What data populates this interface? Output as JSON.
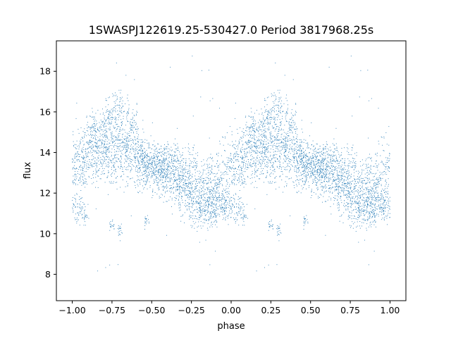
{
  "chart_data": {
    "type": "scatter",
    "title": "1SWASPJ122619.25-530427.0 Period 3817968.25s",
    "xlabel": "phase",
    "ylabel": "flux",
    "xlim": [
      -1.1,
      1.1
    ],
    "ylim": [
      6.7,
      19.5
    ],
    "xticks": [
      -1.0,
      -0.75,
      -0.5,
      -0.25,
      0.0,
      0.25,
      0.5,
      0.75,
      1.0
    ],
    "xtick_labels": [
      "−1.00",
      "−0.75",
      "−0.50",
      "−0.25",
      "0.00",
      "0.25",
      "0.50",
      "0.75",
      "1.00"
    ],
    "yticks": [
      8,
      10,
      12,
      14,
      16,
      18
    ],
    "ytick_labels": [
      "8",
      "10",
      "12",
      "14",
      "16",
      "18"
    ],
    "grid": false,
    "point_color": "#1f77b4",
    "phase_profile": {
      "phase": [
        0.0,
        0.05,
        0.1,
        0.15,
        0.2,
        0.25,
        0.3,
        0.35,
        0.4,
        0.45,
        0.5,
        0.55,
        0.6,
        0.65,
        0.7,
        0.75,
        0.8,
        0.85,
        0.9,
        0.95,
        1.0
      ],
      "flux_mean": [
        13.2,
        13.6,
        13.9,
        14.0,
        14.2,
        14.3,
        14.2,
        14.0,
        13.8,
        13.5,
        13.3,
        13.2,
        13.1,
        12.9,
        12.6,
        12.3,
        12.1,
        12.0,
        12.2,
        12.6,
        13.2
      ],
      "flux_spread": [
        1.2,
        1.1,
        1.0,
        1.0,
        1.1,
        1.2,
        1.1,
        1.0,
        0.9,
        0.8,
        0.8,
        0.8,
        0.9,
        1.0,
        1.1,
        1.2,
        1.2,
        1.2,
        1.2,
        1.2,
        1.2
      ]
    },
    "high_branch": {
      "phase": [
        0.15,
        0.2,
        0.25,
        0.3,
        0.35
      ],
      "flux": [
        15.2,
        15.9,
        16.2,
        16.0,
        15.6
      ]
    },
    "low_branch": {
      "phase": [
        0.0,
        0.05,
        0.85,
        0.9,
        0.95,
        1.0
      ],
      "flux": [
        11.2,
        11.0,
        11.3,
        11.4,
        11.2,
        11.1
      ]
    },
    "isolated_clumps": [
      {
        "phase": 0.25,
        "flux": 10.4
      },
      {
        "phase": 0.3,
        "flux": 10.2
      },
      {
        "phase": 0.47,
        "flux": 10.7
      }
    ]
  }
}
